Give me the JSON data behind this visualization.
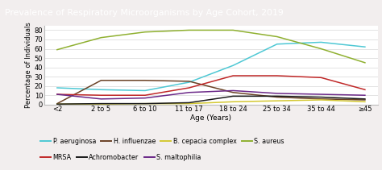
{
  "title": "Prevalence of Respiratory Microorganisms by Age Cohort, 2019",
  "title_bg": "#8b4da0",
  "title_color": "#ffffff",
  "xlabel": "Age (Years)",
  "ylabel": "Percentage of Individuals",
  "xtick_labels": [
    "<2",
    "2 to 5",
    "6 to 10",
    "11 to 17",
    "18 to 24",
    "25 to 34",
    "35 to 44",
    "≥45"
  ],
  "ylim": [
    0,
    85
  ],
  "yticks": [
    0,
    10,
    20,
    30,
    40,
    50,
    60,
    70,
    80
  ],
  "series": {
    "P. aeruginosa": {
      "color": "#4ec8d4",
      "values": [
        18,
        16,
        15,
        24,
        42,
        65,
        67,
        62
      ]
    },
    "H. influenzae": {
      "color": "#6b4226",
      "values": [
        1,
        26,
        26,
        25,
        13,
        8,
        6,
        5
      ]
    },
    "B. cepacia complex": {
      "color": "#d4c832",
      "values": [
        0.5,
        0.5,
        1,
        1,
        3,
        4,
        5,
        3
      ]
    },
    "S. aureus": {
      "color": "#8fb030",
      "values": [
        59,
        72,
        78,
        80,
        80,
        73,
        60,
        45
      ]
    },
    "MRSA": {
      "color": "#c02828",
      "values": [
        11,
        10,
        10,
        18,
        31,
        31,
        29,
        16
      ]
    },
    "Achromobacter": {
      "color": "#1a1a1a",
      "values": [
        0.5,
        1,
        1,
        2,
        9,
        9,
        8,
        6
      ]
    },
    "S. maltophilia": {
      "color": "#6b2888",
      "values": [
        11,
        6,
        7,
        13,
        15,
        12,
        11,
        10
      ]
    }
  },
  "bg_color": "#f2eeee",
  "plot_bg": "#ffffff",
  "grid_color": "#d8d8d8",
  "legend_fontsize": 5.8,
  "axis_fontsize": 6.0,
  "title_fontsize": 7.8,
  "ylabel_fontsize": 6.0,
  "xlabel_fontsize": 6.5
}
